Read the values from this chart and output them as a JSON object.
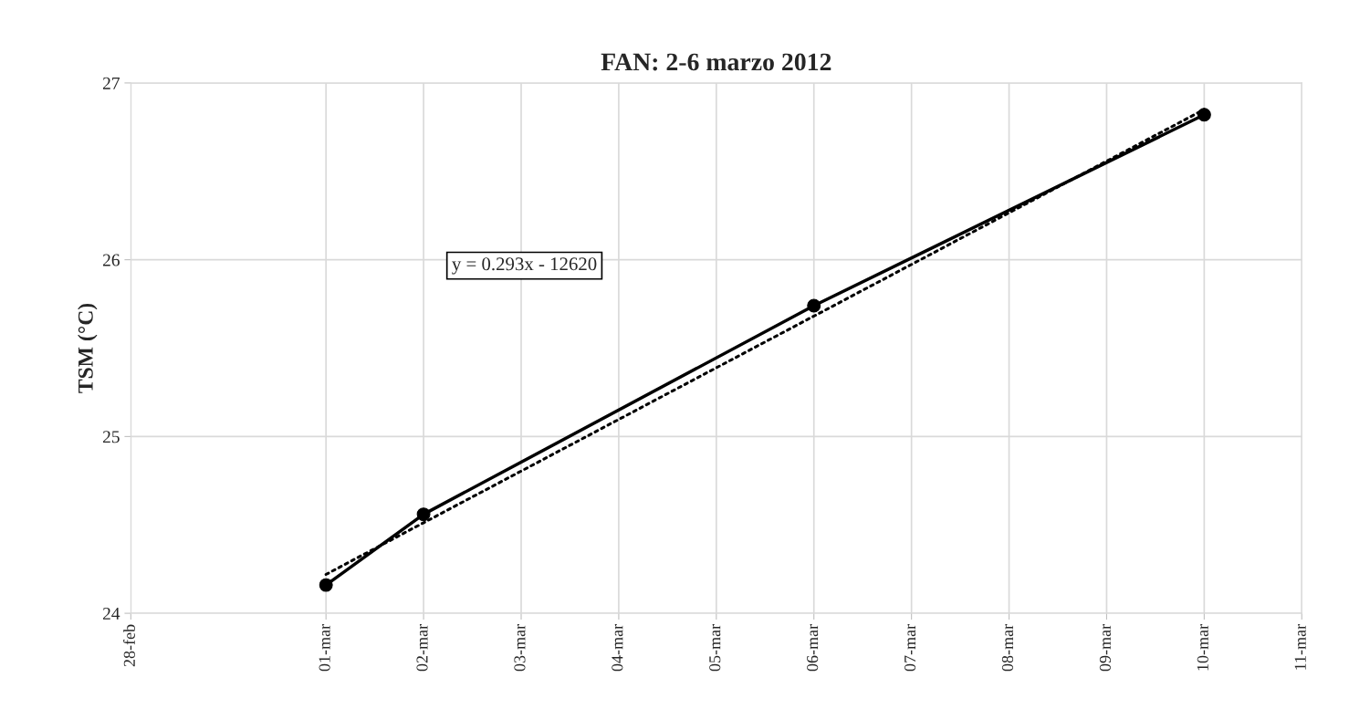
{
  "chart_data": {
    "type": "line",
    "title": "FAN: 2-6 marzo 2012",
    "ylabel": "TSM (°C)",
    "series": [
      {
        "color": "#000000",
        "marker": "circle",
        "line_style": "solid",
        "x": [
          "2012-03-01",
          "2012-03-02",
          "2012-03-06",
          "2012-03-10"
        ],
        "values": [
          24.16,
          24.56,
          25.74,
          26.82
        ]
      },
      {
        "type": "line",
        "color": "#000000",
        "marker": "none",
        "line_style": "dotted",
        "x": [
          "2012-03-01",
          "2012-03-10"
        ],
        "values": [
          24.22,
          26.85
        ]
      }
    ],
    "annotations": [
      "y = 0.293x - 12620"
    ],
    "xlim": [
      "2012-02-28",
      "2012-03-11"
    ],
    "xticks": [
      {
        "value": "2012-02-28",
        "label": "28-feb"
      },
      {
        "value": "2012-03-01",
        "label": "01-mar"
      },
      {
        "value": "2012-03-02",
        "label": "02-mar"
      },
      {
        "value": "2012-03-03",
        "label": "03-mar"
      },
      {
        "value": "2012-03-04",
        "label": "04-mar"
      },
      {
        "value": "2012-03-05",
        "label": "05-mar"
      },
      {
        "value": "2012-03-06",
        "label": "06-mar"
      },
      {
        "value": "2012-03-07",
        "label": "07-mar"
      },
      {
        "value": "2012-03-08",
        "label": "08-mar"
      },
      {
        "value": "2012-03-09",
        "label": "09-mar"
      },
      {
        "value": "2012-03-10",
        "label": "10-mar"
      },
      {
        "value": "2012-03-11",
        "label": "11-mar"
      }
    ],
    "ylim": [
      24,
      27
    ],
    "yticks": [
      24,
      25,
      26,
      27
    ],
    "grid": true,
    "legend": false
  }
}
